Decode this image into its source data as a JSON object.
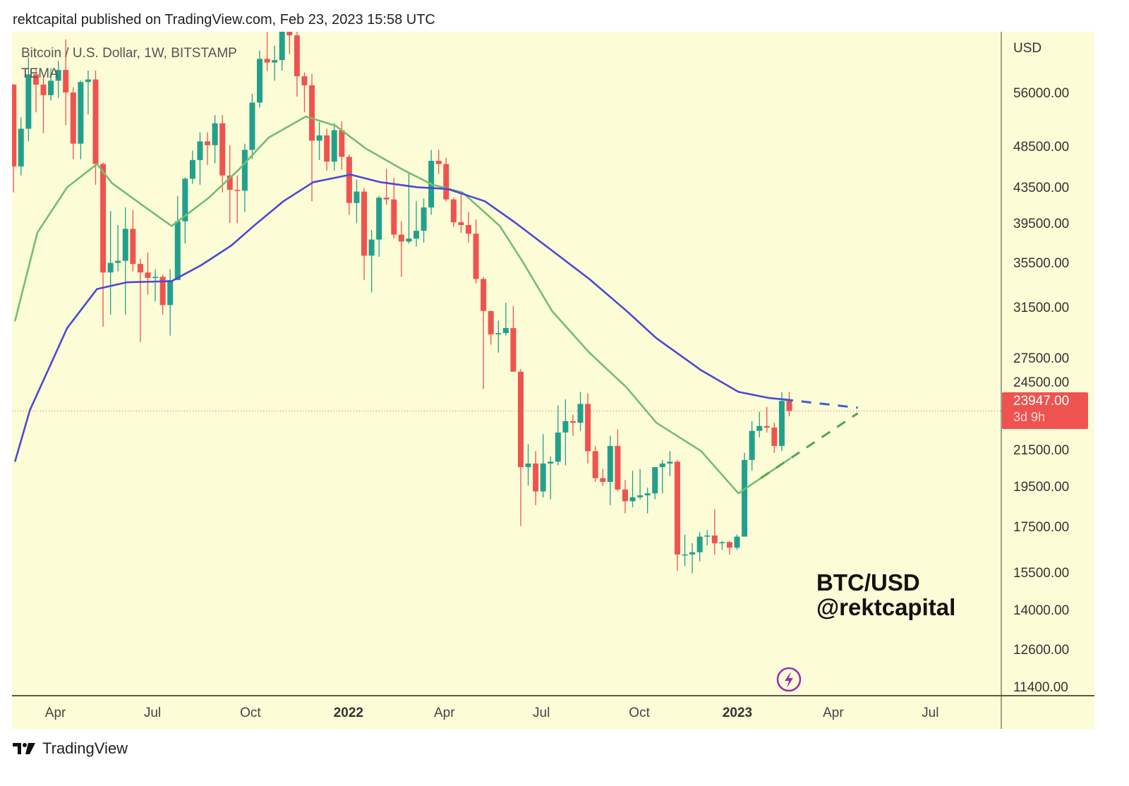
{
  "header": {
    "published": "rektcapital published on TradingView.com, Feb 23, 2023 15:58 UTC"
  },
  "legend": {
    "symbol": "Bitcoin / U.S. Dollar, 1W, BITSTAMP",
    "indicator": "TEMA"
  },
  "watermark": {
    "line1": "BTC/USD",
    "line2": "@rektcapital"
  },
  "footer": {
    "brand": "TradingView",
    "logo_icon": "tradingview-logo-icon"
  },
  "colors": {
    "background": "#fcfcd6",
    "up": "#22a08e",
    "down": "#ef5350",
    "tema_fast": "#72bf72",
    "tema_slow": "#4b49d6",
    "lightning": "#9b2fb0"
  },
  "chart_data": {
    "type": "candlestick",
    "title": "Bitcoin / U.S. Dollar, 1W, BITSTAMP",
    "interval": "1W",
    "scale": "log",
    "grid": false,
    "price_axis": {
      "unit": "USD",
      "ticks": [
        "56000.00",
        "48500.00",
        "43500.00",
        "39500.00",
        "35500.00",
        "31500.00",
        "27500.00",
        "24500.00",
        "21500.00",
        "19500.00",
        "17500.00",
        "15500.00",
        "14000.00",
        "12600.00",
        "11400.00"
      ]
    },
    "time_axis": {
      "ticks": [
        {
          "date": "2021-04-01",
          "label": "Apr",
          "year": false
        },
        {
          "date": "2021-07-01",
          "label": "Jul",
          "year": false
        },
        {
          "date": "2021-10-01",
          "label": "Oct",
          "year": false
        },
        {
          "date": "2022-01-01",
          "label": "2022",
          "year": true
        },
        {
          "date": "2022-04-01",
          "label": "Apr",
          "year": false
        },
        {
          "date": "2022-07-01",
          "label": "Jul",
          "year": false
        },
        {
          "date": "2022-10-01",
          "label": "Oct",
          "year": false
        },
        {
          "date": "2023-01-01",
          "label": "2023",
          "year": true
        },
        {
          "date": "2023-04-01",
          "label": "Apr",
          "year": false
        },
        {
          "date": "2023-07-01",
          "label": "Jul",
          "year": false
        }
      ]
    },
    "first_week": "2021-02-22",
    "candles_ohlc": [
      [
        57400,
        57500,
        43000,
        46100
      ],
      [
        46100,
        52600,
        45000,
        51000
      ],
      [
        51000,
        61700,
        49300,
        59000
      ],
      [
        59000,
        60000,
        53300,
        57400
      ],
      [
        57400,
        58500,
        50400,
        55800
      ],
      [
        55800,
        60000,
        55000,
        58000
      ],
      [
        58000,
        61200,
        55400,
        59700
      ],
      [
        59700,
        64800,
        51500,
        56200
      ],
      [
        56200,
        57000,
        47000,
        49000
      ],
      [
        49000,
        58000,
        47000,
        57800
      ],
      [
        57800,
        59600,
        53000,
        58200
      ],
      [
        58200,
        59600,
        43900,
        46400
      ],
      [
        46400,
        46600,
        30000,
        34700
      ],
      [
        34700,
        40900,
        31000,
        35600
      ],
      [
        35600,
        39400,
        34800,
        35800
      ],
      [
        35800,
        41300,
        31000,
        39000
      ],
      [
        39000,
        41000,
        34800,
        35500
      ],
      [
        35500,
        36000,
        28800,
        34700
      ],
      [
        34700,
        36600,
        32700,
        34200
      ],
      [
        34200,
        35000,
        32100,
        34300
      ],
      [
        34300,
        34500,
        31000,
        31800
      ],
      [
        31800,
        35000,
        29300,
        34000
      ],
      [
        34000,
        42600,
        34000,
        39800
      ],
      [
        39800,
        44800,
        37500,
        44600
      ],
      [
        44600,
        48100,
        44000,
        46900
      ],
      [
        46900,
        50500,
        43900,
        49300
      ],
      [
        49300,
        50500,
        46300,
        48800
      ],
      [
        48800,
        52900,
        46500,
        51750
      ],
      [
        51750,
        52900,
        43000,
        45000
      ],
      [
        45000,
        48800,
        39600,
        43300
      ],
      [
        43300,
        45000,
        39600,
        43200
      ],
      [
        43200,
        49000,
        40800,
        48200
      ],
      [
        48200,
        56000,
        47000,
        54700
      ],
      [
        54700,
        62900,
        54000,
        61500
      ],
      [
        61500,
        67000,
        59500,
        60900
      ],
      [
        60900,
        63700,
        58000,
        61300
      ],
      [
        61300,
        68000,
        59600,
        67500
      ],
      [
        67500,
        69000,
        62300,
        65500
      ],
      [
        65500,
        66400,
        55600,
        58700
      ],
      [
        58700,
        59300,
        53300,
        57300
      ],
      [
        57300,
        59100,
        42000,
        49400
      ],
      [
        49400,
        51900,
        46900,
        50100
      ],
      [
        50100,
        51000,
        45600,
        46700
      ],
      [
        46700,
        51800,
        45600,
        50800
      ],
      [
        50800,
        52000,
        45700,
        47300
      ],
      [
        47300,
        47600,
        40500,
        41800
      ],
      [
        41800,
        44500,
        39600,
        43100
      ],
      [
        43100,
        43500,
        34000,
        36300
      ],
      [
        36300,
        38900,
        32900,
        37900
      ],
      [
        37900,
        42600,
        36200,
        42400
      ],
      [
        42400,
        45800,
        41600,
        42200
      ],
      [
        42200,
        44700,
        38000,
        38400
      ],
      [
        38400,
        39800,
        34300,
        37700
      ],
      [
        37700,
        45400,
        37500,
        38000
      ],
      [
        38000,
        42000,
        37200,
        38800
      ],
      [
        38800,
        42300,
        37600,
        41300
      ],
      [
        41300,
        48200,
        40500,
        46800
      ],
      [
        46800,
        48200,
        45200,
        46400
      ],
      [
        46400,
        47200,
        42000,
        42200
      ],
      [
        42200,
        42400,
        39200,
        39700
      ],
      [
        39700,
        42900,
        38600,
        39400
      ],
      [
        39400,
        40800,
        37600,
        38500
      ],
      [
        38500,
        40000,
        33700,
        34100
      ],
      [
        34100,
        34300,
        25400,
        31300
      ],
      [
        31300,
        31200,
        28600,
        29400
      ],
      [
        29400,
        30500,
        28000,
        29500
      ],
      [
        29500,
        32000,
        29300,
        29900
      ],
      [
        29900,
        31700,
        26600,
        26600
      ],
      [
        26600,
        26800,
        17600,
        20600
      ],
      [
        20600,
        21900,
        19600,
        20800
      ],
      [
        20800,
        21500,
        18600,
        19300
      ],
      [
        19300,
        22500,
        19000,
        20800
      ],
      [
        20800,
        21200,
        18900,
        20900
      ],
      [
        20900,
        24300,
        20700,
        22600
      ],
      [
        22600,
        24700,
        20700,
        23300
      ],
      [
        23300,
        23700,
        22400,
        23200
      ],
      [
        23200,
        25200,
        22700,
        24400
      ],
      [
        24400,
        25100,
        20800,
        21500
      ],
      [
        21500,
        21800,
        19800,
        20000
      ],
      [
        20000,
        20500,
        19600,
        19800
      ],
      [
        19800,
        22400,
        18600,
        21800
      ],
      [
        21800,
        22800,
        19300,
        19400
      ],
      [
        19400,
        19900,
        18200,
        18800
      ],
      [
        18800,
        20400,
        18500,
        19000
      ],
      [
        19000,
        20500,
        18900,
        19100
      ],
      [
        19100,
        19500,
        18200,
        19200
      ],
      [
        19200,
        19700,
        18900,
        20600
      ],
      [
        20600,
        21000,
        19200,
        20800
      ],
      [
        20800,
        21500,
        20100,
        20900
      ],
      [
        20900,
        21000,
        15600,
        16300
      ],
      [
        16300,
        17200,
        15800,
        16300
      ],
      [
        16300,
        16800,
        15500,
        16400
      ],
      [
        16400,
        17300,
        16000,
        17100
      ],
      [
        17100,
        17400,
        16700,
        17150
      ],
      [
        17150,
        18400,
        16300,
        16800
      ],
      [
        16800,
        16900,
        16500,
        16850
      ],
      [
        16850,
        16900,
        16300,
        16600
      ],
      [
        16600,
        17200,
        16500,
        17100
      ],
      [
        17100,
        21400,
        17100,
        21000
      ],
      [
        21000,
        23300,
        20400,
        22700
      ],
      [
        22700,
        23900,
        22300,
        23000
      ],
      [
        23000,
        24200,
        22600,
        22900
      ],
      [
        22900,
        23200,
        21400,
        21800
      ],
      [
        21800,
        25200,
        21500,
        24600
      ],
      [
        24600,
        25200,
        23600,
        23947
      ]
    ],
    "last_price": "23947.00",
    "countdown": "3d 9h",
    "series": [
      {
        "kind": "tema_fast",
        "points": [
          [
            "2021-02-22",
            30450
          ],
          [
            "2021-03-15",
            38600
          ],
          [
            "2021-04-12",
            43600
          ],
          [
            "2021-05-10",
            46400
          ],
          [
            "2021-05-24",
            44100
          ],
          [
            "2021-06-21",
            41600
          ],
          [
            "2021-07-19",
            39300
          ],
          [
            "2021-08-23",
            42400
          ],
          [
            "2021-09-20",
            45700
          ],
          [
            "2021-10-18",
            49800
          ],
          [
            "2021-11-22",
            52700
          ],
          [
            "2021-12-20",
            51400
          ],
          [
            "2022-01-17",
            48400
          ],
          [
            "2022-02-21",
            45700
          ],
          [
            "2022-03-21",
            43900
          ],
          [
            "2022-04-18",
            43000
          ],
          [
            "2022-05-23",
            39300
          ],
          [
            "2022-06-13",
            35800
          ],
          [
            "2022-07-11",
            31300
          ],
          [
            "2022-08-15",
            28000
          ],
          [
            "2022-09-19",
            25500
          ],
          [
            "2022-10-17",
            23200
          ],
          [
            "2022-11-28",
            21500
          ],
          [
            "2023-01-02",
            19200
          ],
          [
            "2023-01-23",
            20000
          ],
          [
            "2023-02-20",
            21100
          ]
        ]
      },
      {
        "kind": "tema_slow",
        "points": [
          [
            "2021-02-22",
            20900
          ],
          [
            "2021-03-08",
            24000
          ],
          [
            "2021-04-12",
            29900
          ],
          [
            "2021-05-10",
            33200
          ],
          [
            "2021-06-07",
            33800
          ],
          [
            "2021-07-19",
            33900
          ],
          [
            "2021-08-16",
            35400
          ],
          [
            "2021-09-13",
            37300
          ],
          [
            "2021-10-04",
            39300
          ],
          [
            "2021-11-01",
            42000
          ],
          [
            "2021-11-29",
            44200
          ],
          [
            "2022-01-03",
            45100
          ],
          [
            "2022-01-31",
            44200
          ],
          [
            "2022-03-07",
            43600
          ],
          [
            "2022-04-04",
            43400
          ],
          [
            "2022-05-09",
            42000
          ],
          [
            "2022-06-06",
            39700
          ],
          [
            "2022-07-11",
            36800
          ],
          [
            "2022-08-15",
            34100
          ],
          [
            "2022-09-19",
            31300
          ],
          [
            "2022-10-17",
            29100
          ],
          [
            "2022-11-28",
            26700
          ],
          [
            "2023-01-02",
            25200
          ],
          [
            "2023-01-30",
            24800
          ],
          [
            "2023-02-20",
            24650
          ]
        ]
      }
    ],
    "annotations": [
      {
        "kind": "dashed_trendline",
        "color": "#3a5fd8",
        "from": [
          "2023-02-13",
          24700
        ],
        "to": [
          "2023-04-24",
          24150
        ]
      },
      {
        "kind": "dashed_trendline",
        "color": "#4fa64f",
        "from": [
          "2023-01-23",
          20000
        ],
        "to": [
          "2023-04-24",
          23800
        ]
      }
    ]
  }
}
